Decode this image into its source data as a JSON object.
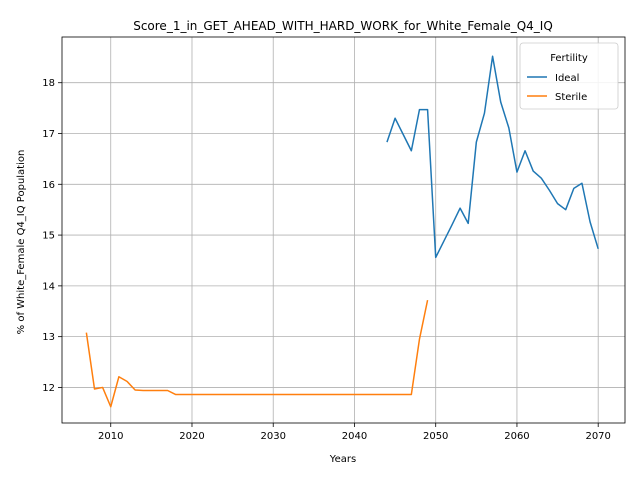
{
  "chart_data": {
    "type": "line",
    "title": "Score_1_in_GET_AHEAD_WITH_HARD_WORK_for_White_Female_Q4_IQ",
    "xlabel": "Years",
    "ylabel": "% of White_Female Q4_IQ Population",
    "xlim": [
      2004,
      2073.3
    ],
    "ylim": [
      11.3,
      18.9
    ],
    "xticks": [
      2010,
      2020,
      2030,
      2040,
      2050,
      2060,
      2070
    ],
    "yticks": [
      12,
      13,
      14,
      15,
      16,
      17,
      18
    ],
    "grid": true,
    "legend": {
      "title": "Fertility",
      "placement": "upper right"
    },
    "series": [
      {
        "name": "Ideal",
        "color": "#1f77b4",
        "points": [
          [
            2044,
            16.83
          ],
          [
            2045,
            17.3
          ],
          [
            2046,
            16.98
          ],
          [
            2047,
            16.66
          ],
          [
            2048,
            17.47
          ],
          [
            2049,
            17.47
          ],
          [
            2050,
            14.56
          ],
          [
            2051,
            14.88
          ],
          [
            2052,
            15.2
          ],
          [
            2053,
            15.53
          ],
          [
            2054,
            15.23
          ],
          [
            2055,
            16.83
          ],
          [
            2056,
            17.4
          ],
          [
            2057,
            18.52
          ],
          [
            2058,
            17.62
          ],
          [
            2059,
            17.11
          ],
          [
            2060,
            16.24
          ],
          [
            2061,
            16.66
          ],
          [
            2062,
            16.26
          ],
          [
            2063,
            16.12
          ],
          [
            2064,
            15.88
          ],
          [
            2065,
            15.62
          ],
          [
            2066,
            15.5
          ],
          [
            2067,
            15.92
          ],
          [
            2068,
            16.02
          ],
          [
            2069,
            15.26
          ],
          [
            2070,
            14.73
          ]
        ]
      },
      {
        "name": "Sterile",
        "color": "#ff7f0e",
        "points": [
          [
            2007,
            13.08
          ],
          [
            2008,
            11.97
          ],
          [
            2009,
            12.0
          ],
          [
            2010,
            11.62
          ],
          [
            2011,
            12.21
          ],
          [
            2012,
            12.12
          ],
          [
            2013,
            11.95
          ],
          [
            2014,
            11.94
          ],
          [
            2015,
            11.94
          ],
          [
            2016,
            11.94
          ],
          [
            2017,
            11.94
          ],
          [
            2018,
            11.86
          ],
          [
            2019,
            11.86
          ],
          [
            2020,
            11.86
          ],
          [
            2025,
            11.86
          ],
          [
            2030,
            11.86
          ],
          [
            2035,
            11.86
          ],
          [
            2040,
            11.86
          ],
          [
            2045,
            11.86
          ],
          [
            2047,
            11.86
          ],
          [
            2048,
            12.95
          ],
          [
            2049,
            13.72
          ]
        ]
      }
    ]
  }
}
